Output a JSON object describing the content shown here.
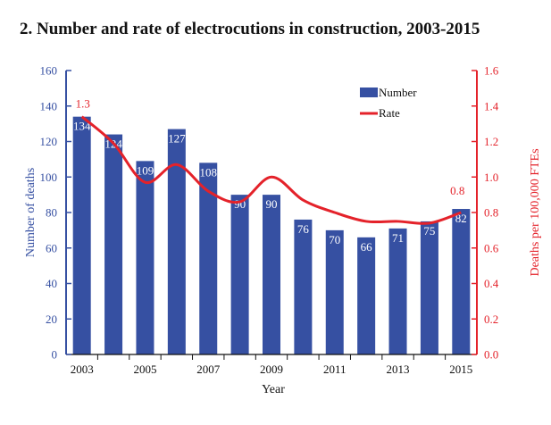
{
  "chart_data": {
    "type": "bar",
    "title": "2. Number and rate of electrocutions in construction, 2003-2015",
    "xlabel": "Year",
    "ylabel": "Number of deaths",
    "y2label": "Deaths per 100,000 FTEs",
    "categories": [
      "2003",
      "2004",
      "2005",
      "2006",
      "2007",
      "2008",
      "2009",
      "2010",
      "2011",
      "2012",
      "2013",
      "2014",
      "2015"
    ],
    "x_tick_labels": [
      "2003",
      "2005",
      "2007",
      "2009",
      "2011",
      "2013",
      "2015"
    ],
    "y_ticks": [
      "0",
      "20",
      "40",
      "60",
      "80",
      "100",
      "120",
      "140",
      "160"
    ],
    "y2_ticks": [
      "0.0",
      "0.2",
      "0.4",
      "0.6",
      "0.8",
      "1.0",
      "1.2",
      "1.4",
      "1.6"
    ],
    "ylim": [
      0,
      160
    ],
    "y2lim": [
      0,
      1.6
    ],
    "grid": false,
    "legend_position": "top-right",
    "series": [
      {
        "name": "Number",
        "type": "bar",
        "axis": "left",
        "color": "#3650a2",
        "values": [
          134,
          124,
          109,
          127,
          108,
          90,
          90,
          76,
          70,
          66,
          71,
          75,
          82
        ],
        "labels": [
          "134",
          "124",
          "109",
          "127",
          "108",
          "90",
          "90",
          "76",
          "70",
          "66",
          "71",
          "75",
          "82"
        ]
      },
      {
        "name": "Rate",
        "type": "line",
        "axis": "right",
        "color": "#e4222a",
        "values": [
          1.34,
          1.19,
          0.97,
          1.07,
          0.92,
          0.86,
          1.0,
          0.87,
          0.8,
          0.75,
          0.75,
          0.74,
          0.8
        ]
      }
    ],
    "annotations": [
      {
        "category": "2003",
        "text": "1.3"
      },
      {
        "category": "2015",
        "text": "0.8"
      }
    ],
    "colors": {
      "bar": "#3650a2",
      "line": "#e4222a",
      "left_axis": "#3650a2",
      "right_axis": "#e4222a"
    }
  }
}
